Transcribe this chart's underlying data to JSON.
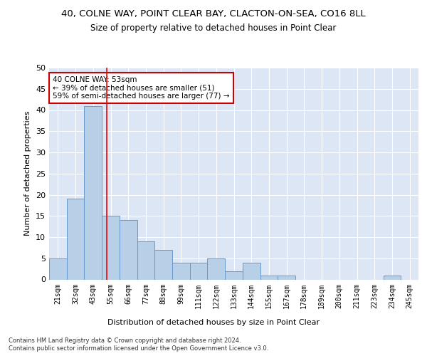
{
  "title1": "40, COLNE WAY, POINT CLEAR BAY, CLACTON-ON-SEA, CO16 8LL",
  "title2": "Size of property relative to detached houses in Point Clear",
  "xlabel": "Distribution of detached houses by size in Point Clear",
  "ylabel": "Number of detached properties",
  "categories": [
    "21sqm",
    "32sqm",
    "43sqm",
    "55sqm",
    "66sqm",
    "77sqm",
    "88sqm",
    "99sqm",
    "111sqm",
    "122sqm",
    "133sqm",
    "144sqm",
    "155sqm",
    "167sqm",
    "178sqm",
    "189sqm",
    "200sqm",
    "211sqm",
    "223sqm",
    "234sqm",
    "245sqm"
  ],
  "values": [
    5,
    19,
    41,
    15,
    14,
    9,
    7,
    4,
    4,
    5,
    2,
    4,
    1,
    1,
    0,
    0,
    0,
    0,
    0,
    1,
    0
  ],
  "bar_color": "#b8cfe8",
  "bar_edge_color": "#6699cc",
  "red_line_x": 2.78,
  "annotation_text": "40 COLNE WAY: 53sqm\n← 39% of detached houses are smaller (51)\n59% of semi-detached houses are larger (77) →",
  "annotation_box_color": "#ffffff",
  "annotation_box_edge": "#cc0000",
  "ylim": [
    0,
    50
  ],
  "plot_bg_color": "#dce6f5",
  "footer1": "Contains HM Land Registry data © Crown copyright and database right 2024.",
  "footer2": "Contains public sector information licensed under the Open Government Licence v3.0.",
  "title1_fontsize": 9.5,
  "title2_fontsize": 8.5,
  "tick_fontsize": 7,
  "ylabel_fontsize": 8,
  "xlabel_fontsize": 8,
  "footer_fontsize": 6,
  "annot_fontsize": 7.5
}
